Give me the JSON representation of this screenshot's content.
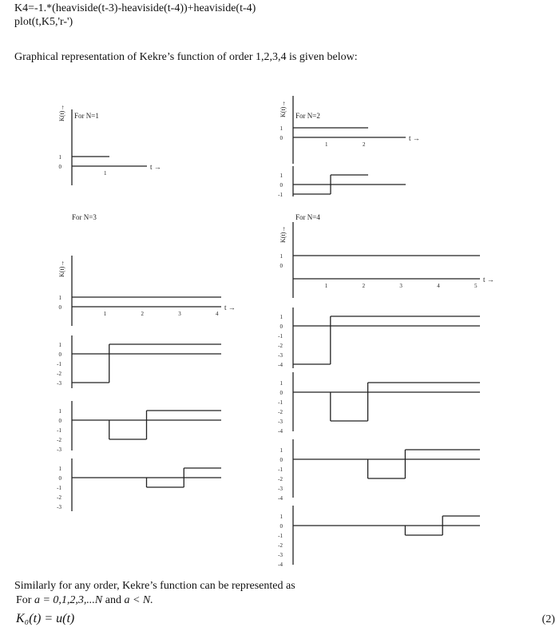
{
  "code": {
    "line1": "K4=-1.*(heaviside(t-3)-heaviside(t-4))+heaviside(t-4)",
    "line2": "plot(t,K5,'r-')"
  },
  "intro": "Graphical representation of Kekre’s function of order 1,2,3,4 is given below:",
  "outro": {
    "line1": "Similarly for any order, Kekre’s function can be represented as",
    "line2_prefix": "For ",
    "line2_math": "a = 0,1,2,3,...N",
    "line2_mid": " and ",
    "line2_math2": "a < N.",
    "equation": "K₀(t) = u(t)",
    "equation_number": "(2)"
  },
  "chart_data": [
    {
      "type": "line",
      "title": "For N=1",
      "ylabel": "K(t)→",
      "xlabel": "t →",
      "panels": [
        {
          "xticks": [
            1
          ],
          "yticks": [
            1,
            0
          ],
          "steps": [
            [
              0,
              1,
              1
            ]
          ]
        }
      ]
    },
    {
      "type": "line",
      "title": "For N=2",
      "ylabel": "K(t)→",
      "xlabel": "t →",
      "panels": [
        {
          "xticks": [
            1,
            2
          ],
          "yticks": [
            1,
            0
          ],
          "steps": [
            [
              0,
              2,
              1
            ]
          ]
        },
        {
          "xticks": [],
          "yticks": [
            1,
            0,
            -1
          ],
          "steps": [
            [
              0,
              1,
              -1
            ],
            [
              1,
              2,
              1
            ]
          ]
        }
      ]
    },
    {
      "type": "line",
      "title": "For N=3",
      "ylabel": "K(t)→",
      "xlabel": "t →",
      "panels": [
        {
          "xticks": [
            1,
            2,
            3,
            4
          ],
          "yticks": [
            1,
            0
          ],
          "steps": [
            [
              0,
              4,
              1
            ]
          ]
        },
        {
          "xticks": [],
          "yticks": [
            1,
            0,
            -1,
            -2,
            -3
          ],
          "steps": [
            [
              0,
              1,
              -3
            ],
            [
              1,
              4,
              1
            ]
          ]
        },
        {
          "xticks": [],
          "yticks": [
            1,
            0,
            -1,
            -2,
            -3
          ],
          "steps": [
            [
              0,
              1,
              0
            ],
            [
              1,
              2,
              -2
            ],
            [
              2,
              4,
              1
            ]
          ]
        },
        {
          "xticks": [],
          "yticks": [
            1,
            0,
            -1,
            -2,
            -3
          ],
          "steps": [
            [
              0,
              2,
              0
            ],
            [
              2,
              3,
              -1
            ],
            [
              3,
              4,
              1
            ]
          ]
        }
      ]
    },
    {
      "type": "line",
      "title": "For N=4",
      "ylabel": "K(t)→",
      "xlabel": "t →",
      "panels": [
        {
          "xticks": [
            1,
            2,
            3,
            4,
            5
          ],
          "yticks": [
            1,
            0
          ],
          "steps": [
            [
              0,
              5,
              1
            ]
          ]
        },
        {
          "xticks": [],
          "yticks": [
            1,
            0,
            -1,
            -2,
            -3,
            -4
          ],
          "steps": [
            [
              0,
              1,
              -4
            ],
            [
              1,
              5,
              1
            ]
          ]
        },
        {
          "xticks": [],
          "yticks": [
            1,
            0,
            -1,
            -2,
            -3,
            -4
          ],
          "steps": [
            [
              0,
              1,
              0
            ],
            [
              1,
              2,
              -3
            ],
            [
              2,
              5,
              1
            ]
          ]
        },
        {
          "xticks": [],
          "yticks": [
            1,
            0,
            -1,
            -2,
            -3,
            -4
          ],
          "steps": [
            [
              0,
              2,
              0
            ],
            [
              2,
              3,
              -2
            ],
            [
              3,
              5,
              1
            ]
          ]
        },
        {
          "xticks": [],
          "yticks": [
            1,
            0,
            -1,
            -2,
            -3,
            -4
          ],
          "steps": [
            [
              0,
              3,
              0
            ],
            [
              3,
              4,
              -1
            ],
            [
              4,
              5,
              1
            ]
          ]
        }
      ]
    }
  ]
}
